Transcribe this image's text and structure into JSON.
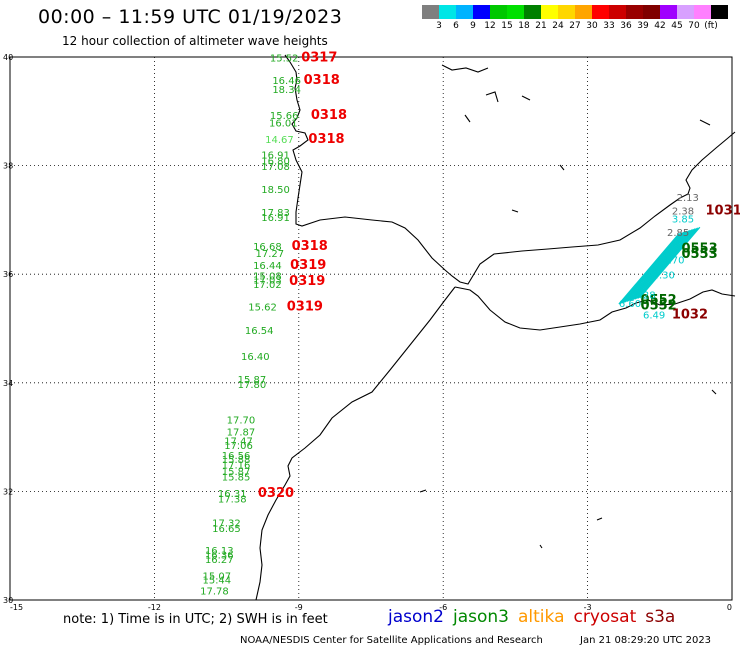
{
  "header": {
    "title": "00:00 – 11:59 UTC 01/19/2023",
    "subtitle": "12 hour collection of altimeter wave heights"
  },
  "colorbar": {
    "colors": [
      "#7f7f7f",
      "#00e6e6",
      "#00b3ff",
      "#0000ff",
      "#00c800",
      "#00e000",
      "#008000",
      "#ffff00",
      "#ffd700",
      "#ffa500",
      "#ff0000",
      "#cc0000",
      "#990000",
      "#800000",
      "#a000ff",
      "#d8a0ff",
      "#ff80ff",
      "#000000"
    ],
    "ticks": [
      "3",
      "6",
      "9",
      "12",
      "15",
      "18",
      "21",
      "24",
      "27",
      "30",
      "33",
      "36",
      "39",
      "42",
      "45",
      "70",
      "(ft)"
    ]
  },
  "map": {
    "lon_range": [
      -15,
      0
    ],
    "lat_range": [
      30,
      40
    ],
    "x_ticks": [
      "-15",
      "-12",
      "-9",
      "-6",
      "-3",
      "0"
    ],
    "y_ticks": [
      "30",
      "32",
      "34",
      "36",
      "38",
      "40"
    ],
    "grid_lons": [
      -12,
      -9,
      -6,
      -3
    ],
    "grid_lats": [
      32,
      34,
      36,
      38
    ]
  },
  "observations": [
    {
      "lon": -9.6,
      "lat": 39.92,
      "text": "15.52",
      "color": "#22aa22"
    },
    {
      "lon": -8.95,
      "lat": 39.92,
      "text": "0317",
      "color": "#ee0000",
      "big": true
    },
    {
      "lon": -9.55,
      "lat": 39.5,
      "text": "16.46",
      "color": "#22aa22"
    },
    {
      "lon": -8.9,
      "lat": 39.5,
      "text": "0318",
      "color": "#ee0000",
      "big": true
    },
    {
      "lon": -9.55,
      "lat": 39.34,
      "text": "18.34",
      "color": "#22aa22"
    },
    {
      "lon": -9.6,
      "lat": 38.86,
      "text": "15.66",
      "color": "#22aa22"
    },
    {
      "lon": -8.75,
      "lat": 38.86,
      "text": "0318",
      "color": "#ee0000",
      "big": true
    },
    {
      "lon": -9.62,
      "lat": 38.72,
      "text": "16.01",
      "color": "#22aa22"
    },
    {
      "lon": -9.7,
      "lat": 38.42,
      "text": "14.67",
      "color": "#55dd55"
    },
    {
      "lon": -8.8,
      "lat": 38.42,
      "text": "0318",
      "color": "#ee0000",
      "big": true
    },
    {
      "lon": -9.78,
      "lat": 38.13,
      "text": "16.91",
      "color": "#22aa22"
    },
    {
      "lon": -9.78,
      "lat": 38.02,
      "text": "16.80",
      "color": "#22aa22"
    },
    {
      "lon": -9.78,
      "lat": 37.92,
      "text": "17.08",
      "color": "#22aa22"
    },
    {
      "lon": -9.78,
      "lat": 37.5,
      "text": "18.50",
      "color": "#22aa22"
    },
    {
      "lon": -9.78,
      "lat": 37.07,
      "text": "17.83",
      "color": "#22aa22"
    },
    {
      "lon": -9.78,
      "lat": 36.98,
      "text": "16.91",
      "color": "#22aa22"
    },
    {
      "lon": -9.95,
      "lat": 36.45,
      "text": "16.68",
      "color": "#22aa22"
    },
    {
      "lon": -9.15,
      "lat": 36.45,
      "text": "0318",
      "color": "#ee0000",
      "big": true
    },
    {
      "lon": -9.9,
      "lat": 36.32,
      "text": "17.27",
      "color": "#22aa22"
    },
    {
      "lon": -9.95,
      "lat": 36.1,
      "text": "16.44",
      "color": "#22aa22"
    },
    {
      "lon": -9.18,
      "lat": 36.1,
      "text": "0319",
      "color": "#ee0000",
      "big": true
    },
    {
      "lon": -9.95,
      "lat": 35.9,
      "text": "15.08",
      "color": "#22aa22"
    },
    {
      "lon": -9.95,
      "lat": 35.83,
      "text": "17.03",
      "color": "#22aa22"
    },
    {
      "lon": -9.95,
      "lat": 35.75,
      "text": "17.02",
      "color": "#22aa22"
    },
    {
      "lon": -9.2,
      "lat": 35.8,
      "text": "0319",
      "color": "#ee0000",
      "big": true
    },
    {
      "lon": -10.05,
      "lat": 35.33,
      "text": "15.62",
      "color": "#22aa22"
    },
    {
      "lon": -9.25,
      "lat": 35.33,
      "text": "0319",
      "color": "#ee0000",
      "big": true
    },
    {
      "lon": -10.12,
      "lat": 34.9,
      "text": "16.54",
      "color": "#22aa22"
    },
    {
      "lon": -10.2,
      "lat": 34.42,
      "text": "16.40",
      "color": "#22aa22"
    },
    {
      "lon": -10.27,
      "lat": 34.0,
      "text": "15.87",
      "color": "#22aa22"
    },
    {
      "lon": -10.27,
      "lat": 33.9,
      "text": "17.80",
      "color": "#22aa22"
    },
    {
      "lon": -10.5,
      "lat": 33.25,
      "text": "17.70",
      "color": "#22aa22"
    },
    {
      "lon": -10.5,
      "lat": 33.03,
      "text": "17.87",
      "color": "#22aa22"
    },
    {
      "lon": -10.55,
      "lat": 32.86,
      "text": "17.47",
      "color": "#22aa22"
    },
    {
      "lon": -10.55,
      "lat": 32.78,
      "text": "17.06",
      "color": "#22aa22"
    },
    {
      "lon": -10.6,
      "lat": 32.6,
      "text": "16.56",
      "color": "#22aa22"
    },
    {
      "lon": -10.6,
      "lat": 32.52,
      "text": "15.88",
      "color": "#22aa22"
    },
    {
      "lon": -10.6,
      "lat": 32.42,
      "text": "17.16",
      "color": "#22aa22"
    },
    {
      "lon": -10.6,
      "lat": 32.3,
      "text": "15.87",
      "color": "#22aa22"
    },
    {
      "lon": -10.6,
      "lat": 32.2,
      "text": "15.85",
      "color": "#22aa22"
    },
    {
      "lon": -10.68,
      "lat": 31.9,
      "text": "16.31",
      "color": "#22aa22"
    },
    {
      "lon": -9.85,
      "lat": 31.9,
      "text": "0320",
      "color": "#ee0000",
      "big": true
    },
    {
      "lon": -10.68,
      "lat": 31.8,
      "text": "17.38",
      "color": "#22aa22"
    },
    {
      "lon": -10.8,
      "lat": 31.35,
      "text": "17.32",
      "color": "#22aa22"
    },
    {
      "lon": -10.8,
      "lat": 31.25,
      "text": "16.65",
      "color": "#22aa22"
    },
    {
      "lon": -10.95,
      "lat": 30.85,
      "text": "16.13",
      "color": "#22aa22"
    },
    {
      "lon": -10.95,
      "lat": 30.76,
      "text": "16.36",
      "color": "#22aa22"
    },
    {
      "lon": -10.95,
      "lat": 30.68,
      "text": "16.27",
      "color": "#22aa22"
    },
    {
      "lon": -11.0,
      "lat": 30.38,
      "text": "15.07",
      "color": "#22aa22"
    },
    {
      "lon": -11.0,
      "lat": 30.3,
      "text": "15.44",
      "color": "#22aa22"
    },
    {
      "lon": -11.05,
      "lat": 30.1,
      "text": "17.78",
      "color": "#22aa22"
    },
    {
      "lon": -1.15,
      "lat": 37.35,
      "text": "2.13",
      "color": "#666666"
    },
    {
      "lon": -0.55,
      "lat": 37.1,
      "text": "1031",
      "color": "#8b0000",
      "big": true
    },
    {
      "lon": -1.25,
      "lat": 37.1,
      "text": "2.38",
      "color": "#666666"
    },
    {
      "lon": -1.25,
      "lat": 36.95,
      "text": "3.85",
      "color": "#00cccc"
    },
    {
      "lon": -1.35,
      "lat": 36.7,
      "text": "2.85",
      "color": "#666666"
    },
    {
      "lon": -1.05,
      "lat": 36.4,
      "text": "0553",
      "color": "#006600",
      "big": true
    },
    {
      "lon": -1.05,
      "lat": 36.3,
      "text": "0553",
      "color": "#006600",
      "big": true
    },
    {
      "lon": -1.45,
      "lat": 36.2,
      "text": "4.70",
      "color": "#00cccc"
    },
    {
      "lon": -1.65,
      "lat": 35.92,
      "text": "4.30",
      "color": "#00cccc"
    },
    {
      "lon": -1.9,
      "lat": 35.45,
      "text": "0552",
      "color": "#006600",
      "big": true
    },
    {
      "lon": -1.9,
      "lat": 35.35,
      "text": "0552",
      "color": "#006600",
      "big": true
    },
    {
      "lon": -2.05,
      "lat": 35.55,
      "text": "5.28",
      "color": "#00cccc"
    },
    {
      "lon": -2.35,
      "lat": 35.4,
      "text": "6.60",
      "color": "#00cccc"
    },
    {
      "lon": -1.85,
      "lat": 35.18,
      "text": "6.49",
      "color": "#00cccc"
    },
    {
      "lon": -1.25,
      "lat": 35.18,
      "text": "1032",
      "color": "#8b0000",
      "big": true
    }
  ],
  "cryosat_track": {
    "lon": [
      -2.35,
      -1.1
    ],
    "lat": [
      35.45,
      36.75
    ],
    "color": "#00cccc"
  },
  "footer": {
    "note": "note: 1) Time is in UTC; 2) SWH is in feet",
    "legend": [
      {
        "name": "jason2",
        "color": "#0000cc"
      },
      {
        "name": "jason3",
        "color": "#008800"
      },
      {
        "name": "altika",
        "color": "#ff9900"
      },
      {
        "name": "cryosat",
        "color": "#cc0000"
      },
      {
        "name": "s3a",
        "color": "#8b0000"
      }
    ],
    "credit": "NOAA/NESDIS Center for Satellite Applications and Research",
    "timestamp": "Jan 21 08:29:20 UTC 2023"
  }
}
